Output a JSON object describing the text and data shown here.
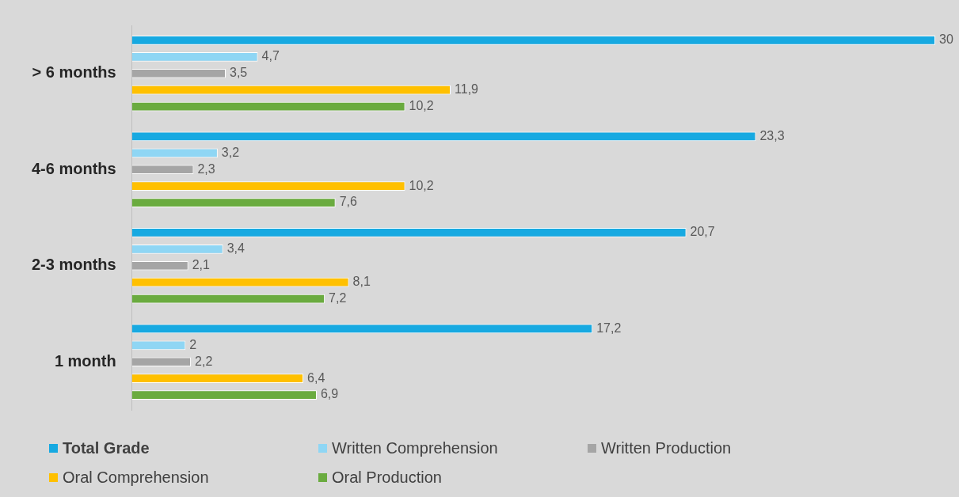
{
  "chart_data": {
    "type": "bar",
    "orientation": "horizontal",
    "categories": [
      "> 6 months",
      "4-6 months",
      "2-3 months",
      "1 month"
    ],
    "series": [
      {
        "name": "Total Grade",
        "color": "#17a9e1",
        "values": [
          30,
          23.3,
          20.7,
          17.2
        ],
        "value_labels": [
          "30",
          "23,3",
          "20,7",
          "17,2"
        ]
      },
      {
        "name": "Written Comprehension",
        "color": "#8fd6f4",
        "values": [
          4.7,
          3.2,
          3.4,
          2
        ],
        "value_labels": [
          "4,7",
          "3,2",
          "3,4",
          "2"
        ]
      },
      {
        "name": "Written Production",
        "color": "#a5a5a5",
        "values": [
          3.5,
          2.3,
          2.1,
          2.2
        ],
        "value_labels": [
          "3,5",
          "2,3",
          "2,1",
          "2,2"
        ]
      },
      {
        "name": "Oral Comprehension",
        "color": "#ffc000",
        "values": [
          11.9,
          10.2,
          8.1,
          6.4
        ],
        "value_labels": [
          "11,9",
          "10,2",
          "8,1",
          "6,4"
        ]
      },
      {
        "name": "Oral Production",
        "color": "#6aab3f",
        "values": [
          10.2,
          7.6,
          7.2,
          6.9
        ],
        "value_labels": [
          "10,2",
          "7,6",
          "7,2",
          "6,9"
        ]
      }
    ],
    "xlim": [
      0,
      30
    ],
    "tick_labels": "y",
    "legend": "bottom"
  }
}
